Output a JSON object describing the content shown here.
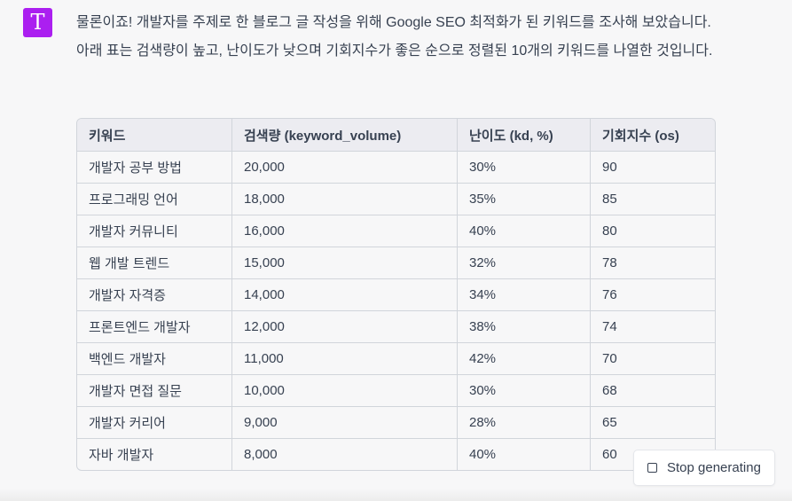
{
  "avatar": {
    "letter": "T",
    "color": "#ab1ff0"
  },
  "message": "물론이죠! 개발자를 주제로 한 블로그 글 작성을 위해 Google SEO 최적화가 된 키워드를 조사해 보았습니다. 아래 표는 검색량이 높고, 난이도가 낮으며 기회지수가 좋은 순으로 정렬된 10개의 키워드를 나열한 것입니다.",
  "table": {
    "headers": [
      "키워드",
      "검색량 (keyword_volume)",
      "난이도 (kd, %)",
      "기회지수 (os)"
    ],
    "rows": [
      [
        "개발자 공부 방법",
        "20,000",
        "30%",
        "90"
      ],
      [
        "프로그래밍 언어",
        "18,000",
        "35%",
        "85"
      ],
      [
        "개발자 커뮤니티",
        "16,000",
        "40%",
        "80"
      ],
      [
        "웹 개발 트렌드",
        "15,000",
        "32%",
        "78"
      ],
      [
        "개발자 자격증",
        "14,000",
        "34%",
        "76"
      ],
      [
        "프론트엔드 개발자",
        "12,000",
        "38%",
        "74"
      ],
      [
        "백엔드 개발자",
        "11,000",
        "42%",
        "70"
      ],
      [
        "개발자 면접 질문",
        "10,000",
        "30%",
        "68"
      ],
      [
        "개발자 커리어",
        "9,000",
        "28%",
        "65"
      ],
      [
        "자바 개발자",
        "8,000",
        "40%",
        "60"
      ]
    ]
  },
  "stop_button": {
    "label": "Stop generating",
    "icon": "stop-square-icon"
  }
}
